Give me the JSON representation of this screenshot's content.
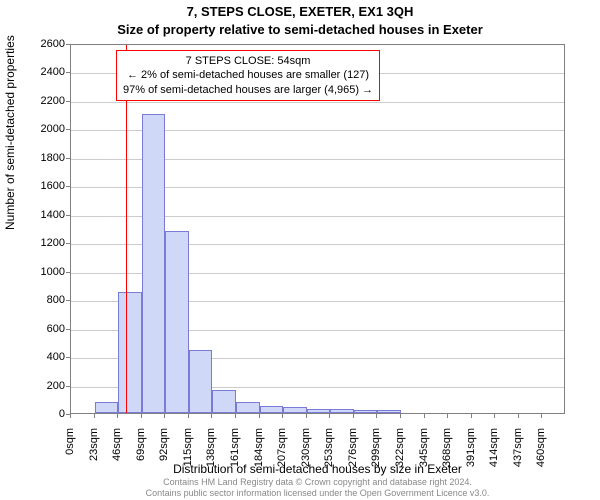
{
  "title": {
    "line1": "7, STEPS CLOSE, EXETER, EX1 3QH",
    "line2": "Size of property relative to semi-detached houses in Exeter"
  },
  "axis": {
    "ylabel": "Number of semi-detached properties",
    "xlabel": "Distribution of semi-detached houses by size in Exeter",
    "ylim": [
      0,
      2600
    ],
    "ytick_step": 200,
    "xtick_step_sqm": 23,
    "xtick_count": 21
  },
  "annotation": {
    "line1": "7 STEPS CLOSE: 54sqm",
    "line2": "← 2% of semi-detached houses are smaller (127)",
    "line3": "97% of semi-detached houses are larger (4,965) →",
    "border_color": "#ff0000",
    "fontsize": 11
  },
  "reference_line": {
    "x_sqm": 54,
    "color": "#ff0000"
  },
  "bars": {
    "bin_width_sqm": 23,
    "fill_color": "#d0d8f8",
    "border_color": "#7a7ad8",
    "counts": [
      0,
      80,
      850,
      2100,
      1280,
      440,
      160,
      80,
      50,
      40,
      30,
      30,
      20,
      20,
      0,
      0,
      0,
      0,
      0,
      0,
      0
    ]
  },
  "style": {
    "background_color": "#ffffff",
    "grid_color": "#cccccc",
    "axis_color": "#808080",
    "tick_fontsize": 11,
    "label_fontsize": 12,
    "title_fontsize": 13
  },
  "footer": {
    "line1": "Contains HM Land Registry data © Crown copyright and database right 2024.",
    "line2": "Contains public sector information licensed under the Open Government Licence v3.0."
  }
}
